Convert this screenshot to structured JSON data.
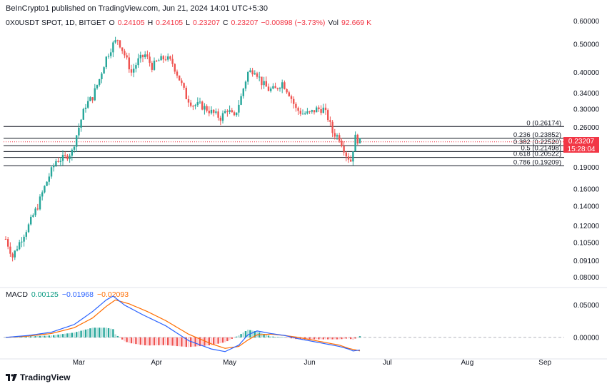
{
  "header": {
    "publisher_line": "BeInCrypto1 published on TradingView.com, Jun 21, 2024 14:01 UTC+5:30"
  },
  "symbol": {
    "name": "0X0USDT SPOT, 1D, BITGET",
    "o_label": "O",
    "o_value": "0.24105",
    "h_label": "H",
    "h_value": "0.24105",
    "l_label": "L",
    "l_value": "0.23207",
    "c_label": "C",
    "c_value": "0.23207",
    "change": "−0.00898 (−3.73%)",
    "vol_label": "Vol",
    "vol_value": "92.669 K"
  },
  "price_badge": {
    "price": "0.23207",
    "countdown": "15:28:04"
  },
  "macd_legend": {
    "label": "MACD",
    "hist": "0.00125",
    "macd": "−0.01968",
    "signal": "−0.02093"
  },
  "branding": {
    "logo_text": "TradingView"
  },
  "colors": {
    "up": "#26a69a",
    "down": "#ef5350",
    "macd_line": "#2962ff",
    "signal_line": "#ff6d00",
    "fib_line": "#131722",
    "badge": "#f23645"
  },
  "chart_data": {
    "type": "candlestick",
    "title": "0X0USDT SPOT, 1D, BITGET",
    "y_scale": "log",
    "price_ticks": [
      "0.60000",
      "0.50000",
      "0.40000",
      "0.34000",
      "0.30000",
      "0.26000",
      "0.19000",
      "0.16000",
      "0.14000",
      "0.12000",
      "0.10500",
      "0.09100",
      "0.08000"
    ],
    "macd_ticks": [
      "0.05000",
      "0.00000"
    ],
    "x_ticks": [
      "Mar",
      "Apr",
      "May",
      "Jun",
      "Jul",
      "Aug",
      "Sep"
    ],
    "fib_levels": [
      {
        "label": "0 (0.26174)",
        "value": 0.26174
      },
      {
        "label": "0.236 (0.23852)",
        "value": 0.23852
      },
      {
        "label": "0.382 (0.22520)",
        "value": 0.2252
      },
      {
        "label": "0.5 (0.21498)",
        "value": 0.21498
      },
      {
        "label": "0.618 (0.20522)",
        "value": 0.20522
      },
      {
        "label": "0.786 (0.19209)",
        "value": 0.19209
      }
    ],
    "last_price": 0.23207,
    "anchors": [
      [
        0,
        0.108
      ],
      [
        3,
        0.094
      ],
      [
        6,
        0.105
      ],
      [
        10,
        0.12
      ],
      [
        14,
        0.14
      ],
      [
        18,
        0.17
      ],
      [
        22,
        0.2
      ],
      [
        26,
        0.205
      ],
      [
        29,
        0.215
      ],
      [
        32,
        0.26
      ],
      [
        35,
        0.31
      ],
      [
        38,
        0.33
      ],
      [
        41,
        0.38
      ],
      [
        44,
        0.45
      ],
      [
        47,
        0.5
      ],
      [
        49,
        0.52
      ],
      [
        52,
        0.46
      ],
      [
        55,
        0.4
      ],
      [
        58,
        0.44
      ],
      [
        61,
        0.46
      ],
      [
        64,
        0.42
      ],
      [
        67,
        0.44
      ],
      [
        70,
        0.45
      ],
      [
        73,
        0.43
      ],
      [
        76,
        0.38
      ],
      [
        79,
        0.33
      ],
      [
        82,
        0.31
      ],
      [
        85,
        0.31
      ],
      [
        88,
        0.3
      ],
      [
        91,
        0.29
      ],
      [
        94,
        0.28
      ],
      [
        97,
        0.3
      ],
      [
        100,
        0.28
      ],
      [
        103,
        0.33
      ],
      [
        106,
        0.4
      ],
      [
        109,
        0.41
      ],
      [
        112,
        0.37
      ],
      [
        115,
        0.35
      ],
      [
        118,
        0.35
      ],
      [
        121,
        0.37
      ],
      [
        124,
        0.34
      ],
      [
        127,
        0.3
      ],
      [
        130,
        0.29
      ],
      [
        133,
        0.29
      ],
      [
        136,
        0.3
      ],
      [
        139,
        0.3
      ],
      [
        141,
        0.28
      ],
      [
        143,
        0.25
      ],
      [
        146,
        0.24
      ],
      [
        149,
        0.21
      ],
      [
        151,
        0.2
      ],
      [
        153,
        0.24
      ],
      [
        155,
        0.232
      ]
    ],
    "macd_line": [
      [
        0,
        0.0
      ],
      [
        10,
        0.003
      ],
      [
        20,
        0.008
      ],
      [
        30,
        0.02
      ],
      [
        38,
        0.04
      ],
      [
        44,
        0.058
      ],
      [
        47,
        0.064
      ],
      [
        52,
        0.05
      ],
      [
        60,
        0.035
      ],
      [
        70,
        0.018
      ],
      [
        80,
        -0.005
      ],
      [
        90,
        -0.018
      ],
      [
        96,
        -0.022
      ],
      [
        102,
        -0.012
      ],
      [
        106,
        0.004
      ],
      [
        110,
        0.01
      ],
      [
        116,
        0.006
      ],
      [
        122,
        0.003
      ],
      [
        128,
        -0.002
      ],
      [
        134,
        -0.006
      ],
      [
        140,
        -0.01
      ],
      [
        146,
        -0.014
      ],
      [
        150,
        -0.018
      ],
      [
        152,
        -0.021
      ],
      [
        155,
        -0.01968
      ]
    ],
    "signal_line": [
      [
        0,
        0.0
      ],
      [
        10,
        0.002
      ],
      [
        20,
        0.006
      ],
      [
        30,
        0.015
      ],
      [
        38,
        0.03
      ],
      [
        44,
        0.048
      ],
      [
        48,
        0.058
      ],
      [
        54,
        0.052
      ],
      [
        62,
        0.04
      ],
      [
        70,
        0.026
      ],
      [
        80,
        0.005
      ],
      [
        90,
        -0.01
      ],
      [
        96,
        -0.017
      ],
      [
        102,
        -0.014
      ],
      [
        106,
        -0.004
      ],
      [
        110,
        0.004
      ],
      [
        116,
        0.005
      ],
      [
        122,
        0.003
      ],
      [
        128,
        0.0
      ],
      [
        134,
        -0.004
      ],
      [
        140,
        -0.008
      ],
      [
        146,
        -0.012
      ],
      [
        150,
        -0.017
      ],
      [
        155,
        -0.02093
      ]
    ]
  }
}
